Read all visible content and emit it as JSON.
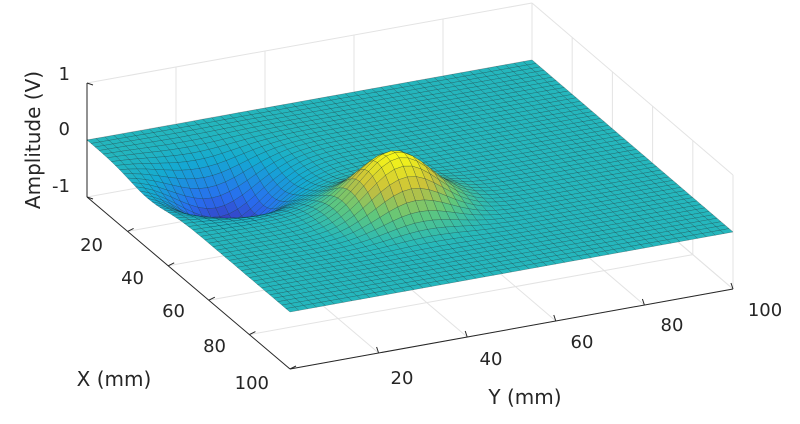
{
  "chart_data": {
    "type": "surface",
    "xlabel": "X (mm)",
    "ylabel": "Y (mm)",
    "zlabel": "Amplitude (V)",
    "xlim": [
      0,
      100
    ],
    "ylim": [
      0,
      100
    ],
    "zlim": [
      -1,
      1
    ],
    "x_ticks": [
      20,
      40,
      60,
      80,
      100
    ],
    "y_ticks": [
      20,
      40,
      60,
      80,
      100
    ],
    "z_ticks": [
      -1,
      0,
      1
    ],
    "x_tick_labels": [
      "20",
      "40",
      "60",
      "80",
      "100"
    ],
    "y_tick_labels": [
      "20",
      "40",
      "60",
      "80",
      "100"
    ],
    "z_tick_labels": [
      "-1",
      "0",
      "1"
    ],
    "grid": true,
    "colormap": "parula",
    "features": [
      {
        "kind": "dip",
        "x_center": 30,
        "y_center": 18,
        "amplitude": -0.9,
        "width_mm": 9
      },
      {
        "kind": "peak",
        "x_center": 60,
        "y_center": 42,
        "amplitude": 1.0,
        "width_mm": 8
      }
    ]
  }
}
